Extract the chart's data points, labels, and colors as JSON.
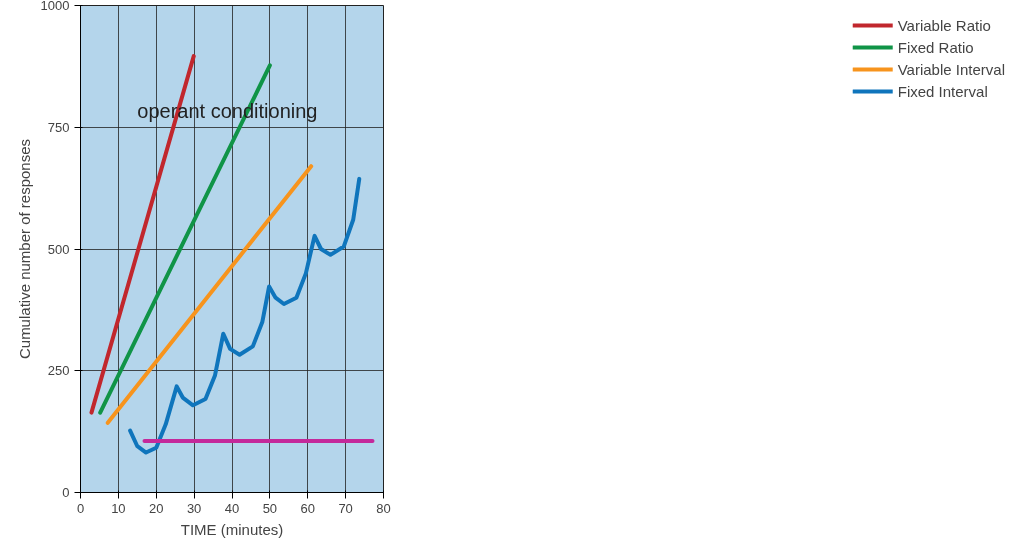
{
  "chart_data": {
    "type": "line",
    "xlabel": "TIME (minutes)",
    "ylabel": "Cumulative number of responses",
    "annotations": [
      "operant conditioning"
    ],
    "xlim": [
      0,
      80
    ],
    "ylim": [
      0,
      1000
    ],
    "xticks": [
      0,
      10,
      20,
      30,
      40,
      50,
      60,
      70,
      80
    ],
    "yticks": [
      0,
      250,
      500,
      750,
      1000
    ],
    "grid": true,
    "legend": "right",
    "line_style": "solid",
    "series": [
      {
        "name": "Variable Ratio",
        "color": "#c1272d",
        "x": [
          2.9,
          29.9
        ],
        "values": [
          164,
          896
        ]
      },
      {
        "name": "Fixed Ratio",
        "color": "#109447",
        "x": [
          5.2,
          50
        ],
        "values": [
          164,
          877
        ]
      },
      {
        "name": "Variable Interval",
        "color": "#f7941d",
        "x": [
          7.2,
          60.9
        ],
        "values": [
          143,
          670
        ]
      },
      {
        "name": "Fixed Interval",
        "color": "#0f75bc",
        "x": [
          13.1,
          15,
          17.3,
          20,
          22.5,
          25.4,
          27,
          29.7,
          33,
          35.5,
          37.7,
          39.5,
          42,
          45.5,
          48,
          49.8,
          51.5,
          53.7,
          57,
          59.5,
          61.8,
          63.5,
          66,
          69.5,
          72,
          73.6
        ],
        "values": [
          127,
          95,
          82,
          92,
          140,
          218,
          195,
          179,
          192,
          240,
          326,
          295,
          283,
          300,
          350,
          423,
          400,
          387,
          400,
          450,
          527,
          500,
          488,
          505,
          560,
          644
        ]
      },
      {
        "color": "#c4299b",
        "x": [
          16.9,
          77.1
        ],
        "values": [
          106,
          106
        ]
      }
    ]
  }
}
